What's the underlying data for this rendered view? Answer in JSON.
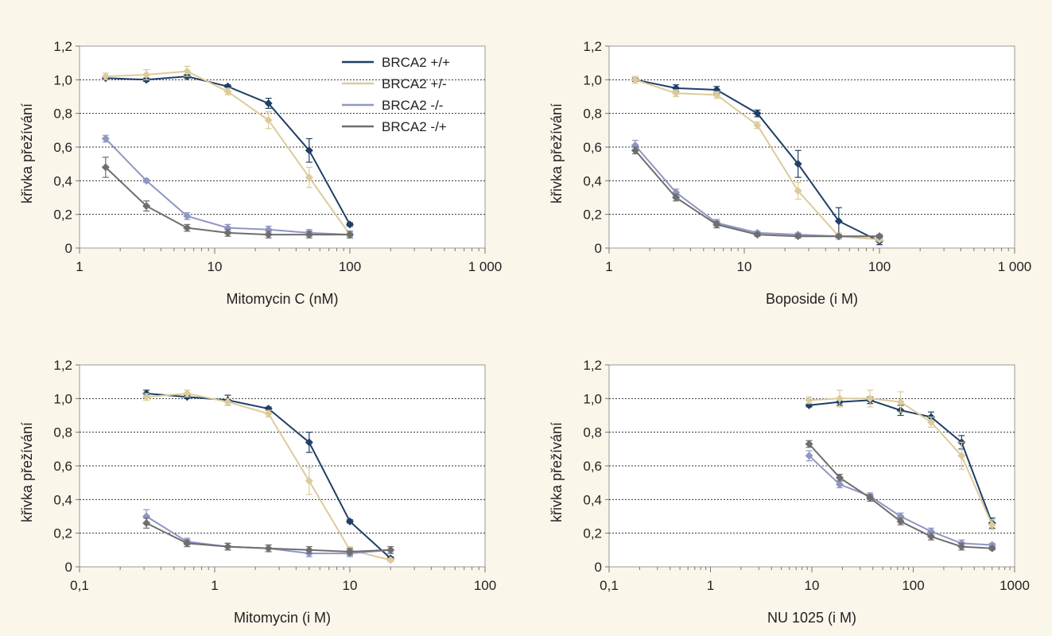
{
  "chart_data": [
    {
      "type": "line",
      "xlabel": "Mitomycin C (nM)",
      "ylabel": "křivka přežívání",
      "xscale": "log",
      "xlim": [
        1,
        1000
      ],
      "ylim": [
        0,
        1.2
      ],
      "xtick_labels": [
        "1",
        "10",
        "100",
        "1 000"
      ],
      "ytick_labels": [
        "0",
        "0,2",
        "0,4",
        "0,6",
        "0,8",
        "1,0",
        "1,2"
      ],
      "grid": "horizontal dotted",
      "legend": "top-right",
      "series": [
        {
          "name": "BRCA2 +/+",
          "color": "#1f3f66",
          "x": [
            1.56,
            3.125,
            6.25,
            12.5,
            25,
            50,
            100
          ],
          "y": [
            1.01,
            1.0,
            1.02,
            0.96,
            0.86,
            0.58,
            0.14
          ],
          "err": [
            0.01,
            0.01,
            0.01,
            0.01,
            0.03,
            0.07,
            0.01
          ]
        },
        {
          "name": "BRCA2 +/-",
          "color": "#dccb9b",
          "x": [
            1.56,
            3.125,
            6.25,
            12.5,
            25,
            50,
            100
          ],
          "y": [
            1.02,
            1.03,
            1.05,
            0.93,
            0.76,
            0.42,
            0.08
          ],
          "err": [
            0.02,
            0.03,
            0.03,
            0.02,
            0.05,
            0.06,
            0.02
          ]
        },
        {
          "name": "BRCA2 -/-",
          "color": "#8f96c4",
          "x": [
            1.56,
            3.125,
            6.25,
            12.5,
            25,
            50,
            100
          ],
          "y": [
            0.65,
            0.4,
            0.19,
            0.12,
            0.11,
            0.09,
            0.08
          ],
          "err": [
            0.02,
            0.01,
            0.02,
            0.02,
            0.02,
            0.02,
            0.01
          ]
        },
        {
          "name": "BRCA2 -/+",
          "color": "#6e6e6e",
          "x": [
            1.56,
            3.125,
            6.25,
            12.5,
            25,
            50,
            100
          ],
          "y": [
            0.48,
            0.25,
            0.12,
            0.09,
            0.08,
            0.08,
            0.08
          ],
          "err": [
            0.06,
            0.03,
            0.02,
            0.02,
            0.02,
            0.02,
            0.02
          ]
        }
      ]
    },
    {
      "type": "line",
      "xlabel": "Boposide (i M)",
      "ylabel": "křivka přežívání",
      "xscale": "log",
      "xlim": [
        1,
        1000
      ],
      "ylim": [
        0,
        1.2
      ],
      "xtick_labels": [
        "1",
        "10",
        "100",
        "1 000"
      ],
      "ytick_labels": [
        "0",
        "0,2",
        "0,4",
        "0,6",
        "0,8",
        "1,0",
        "1,2"
      ],
      "grid": "horizontal dotted",
      "series": [
        {
          "name": "BRCA2 +/+",
          "color": "#1f3f66",
          "x": [
            1.56,
            3.125,
            6.25,
            12.5,
            25,
            50,
            100
          ],
          "y": [
            1.0,
            0.95,
            0.94,
            0.8,
            0.5,
            0.16,
            0.04
          ],
          "err": [
            0.01,
            0.02,
            0.02,
            0.02,
            0.08,
            0.08,
            0.02
          ]
        },
        {
          "name": "BRCA2 +/-",
          "color": "#dccb9b",
          "x": [
            1.56,
            3.125,
            6.25,
            12.5,
            25,
            50,
            100
          ],
          "y": [
            1.0,
            0.92,
            0.91,
            0.73,
            0.34,
            0.07,
            0.05
          ],
          "err": [
            0.02,
            0.02,
            0.02,
            0.02,
            0.05,
            0.02,
            0.01
          ]
        },
        {
          "name": "BRCA2 -/-",
          "color": "#8f96c4",
          "x": [
            1.56,
            3.125,
            6.25,
            12.5,
            25,
            50,
            100
          ],
          "y": [
            0.61,
            0.33,
            0.15,
            0.09,
            0.08,
            0.07,
            0.07
          ],
          "err": [
            0.03,
            0.02,
            0.02,
            0.01,
            0.01,
            0.01,
            0.01
          ]
        },
        {
          "name": "BRCA2 -/+",
          "color": "#6e6e6e",
          "x": [
            1.56,
            3.125,
            6.25,
            12.5,
            25,
            50,
            100
          ],
          "y": [
            0.58,
            0.3,
            0.14,
            0.08,
            0.07,
            0.07,
            0.07
          ],
          "err": [
            0.02,
            0.02,
            0.02,
            0.01,
            0.01,
            0.01,
            0.01
          ]
        }
      ]
    },
    {
      "type": "line",
      "xlabel": "Mitomycin (i M)",
      "ylabel": "křivka přežívání",
      "xscale": "log",
      "xlim": [
        0.1,
        100
      ],
      "ylim": [
        0,
        1.2
      ],
      "xtick_labels": [
        "0,1",
        "1",
        "10",
        "100"
      ],
      "ytick_labels": [
        "0",
        "0,2",
        "0,4",
        "0,6",
        "0,8",
        "1,0",
        "1,2"
      ],
      "grid": "horizontal dotted",
      "series": [
        {
          "name": "BRCA2 +/+",
          "color": "#1f3f66",
          "x": [
            0.3125,
            0.625,
            1.25,
            2.5,
            5,
            10,
            20
          ],
          "y": [
            1.03,
            1.01,
            0.99,
            0.94,
            0.74,
            0.27,
            0.05
          ],
          "err": [
            0.02,
            0.01,
            0.03,
            0.01,
            0.06,
            0.01,
            0.01
          ]
        },
        {
          "name": "BRCA2 +/-",
          "color": "#dccb9b",
          "x": [
            0.3125,
            0.625,
            1.25,
            2.5,
            5,
            10,
            20
          ],
          "y": [
            1.01,
            1.03,
            0.98,
            0.91,
            0.51,
            0.1,
            0.04
          ],
          "err": [
            0.02,
            0.02,
            0.02,
            0.02,
            0.08,
            0.02,
            0.01
          ]
        },
        {
          "name": "BRCA2 -/-",
          "color": "#8f96c4",
          "x": [
            0.3125,
            0.625,
            1.25,
            2.5,
            5,
            10,
            20
          ],
          "y": [
            0.3,
            0.15,
            0.12,
            0.11,
            0.08,
            0.08,
            0.1
          ],
          "err": [
            0.04,
            0.02,
            0.02,
            0.02,
            0.02,
            0.02,
            0.02
          ]
        },
        {
          "name": "BRCA2 -/+",
          "color": "#6e6e6e",
          "x": [
            0.3125,
            0.625,
            1.25,
            2.5,
            5,
            10,
            20
          ],
          "y": [
            0.26,
            0.14,
            0.12,
            0.11,
            0.1,
            0.09,
            0.1
          ],
          "err": [
            0.03,
            0.02,
            0.02,
            0.02,
            0.02,
            0.02,
            0.02
          ]
        }
      ]
    },
    {
      "type": "line",
      "xlabel": "NU 1025 (i M)",
      "ylabel": "křivka přežívání",
      "xscale": "log",
      "xlim": [
        0.1,
        1000
      ],
      "ylim": [
        0,
        1.2
      ],
      "xtick_labels": [
        "0,1",
        "1",
        "10",
        "100",
        "1000"
      ],
      "ytick_labels": [
        "0",
        "0,2",
        "0,4",
        "0,6",
        "0,8",
        "1,0",
        "1,2"
      ],
      "grid": "horizontal dotted",
      "series": [
        {
          "name": "BRCA2 +/+",
          "color": "#1f3f66",
          "x": [
            9.4,
            18.8,
            37.5,
            75,
            150,
            300,
            600
          ],
          "y": [
            0.96,
            0.98,
            0.99,
            0.93,
            0.89,
            0.74,
            0.26
          ],
          "err": [
            0.01,
            0.02,
            0.02,
            0.03,
            0.03,
            0.04,
            0.03
          ]
        },
        {
          "name": "BRCA2 +/-",
          "color": "#dccb9b",
          "x": [
            9.4,
            18.8,
            37.5,
            75,
            150,
            300,
            600
          ],
          "y": [
            0.99,
            1.0,
            1.0,
            0.98,
            0.86,
            0.66,
            0.25
          ],
          "err": [
            0.02,
            0.05,
            0.05,
            0.06,
            0.03,
            0.08,
            0.03
          ]
        },
        {
          "name": "BRCA2 -/-",
          "color": "#8f96c4",
          "x": [
            9.4,
            18.8,
            37.5,
            75,
            150,
            300,
            600
          ],
          "y": [
            0.66,
            0.49,
            0.42,
            0.3,
            0.21,
            0.14,
            0.13
          ],
          "err": [
            0.03,
            0.02,
            0.02,
            0.02,
            0.02,
            0.02,
            0.01
          ]
        },
        {
          "name": "BRCA2 -/+",
          "color": "#6e6e6e",
          "x": [
            9.4,
            18.8,
            37.5,
            75,
            150,
            300,
            600
          ],
          "y": [
            0.73,
            0.53,
            0.41,
            0.27,
            0.18,
            0.12,
            0.11
          ],
          "err": [
            0.02,
            0.02,
            0.02,
            0.02,
            0.02,
            0.02,
            0.01
          ]
        }
      ]
    }
  ]
}
